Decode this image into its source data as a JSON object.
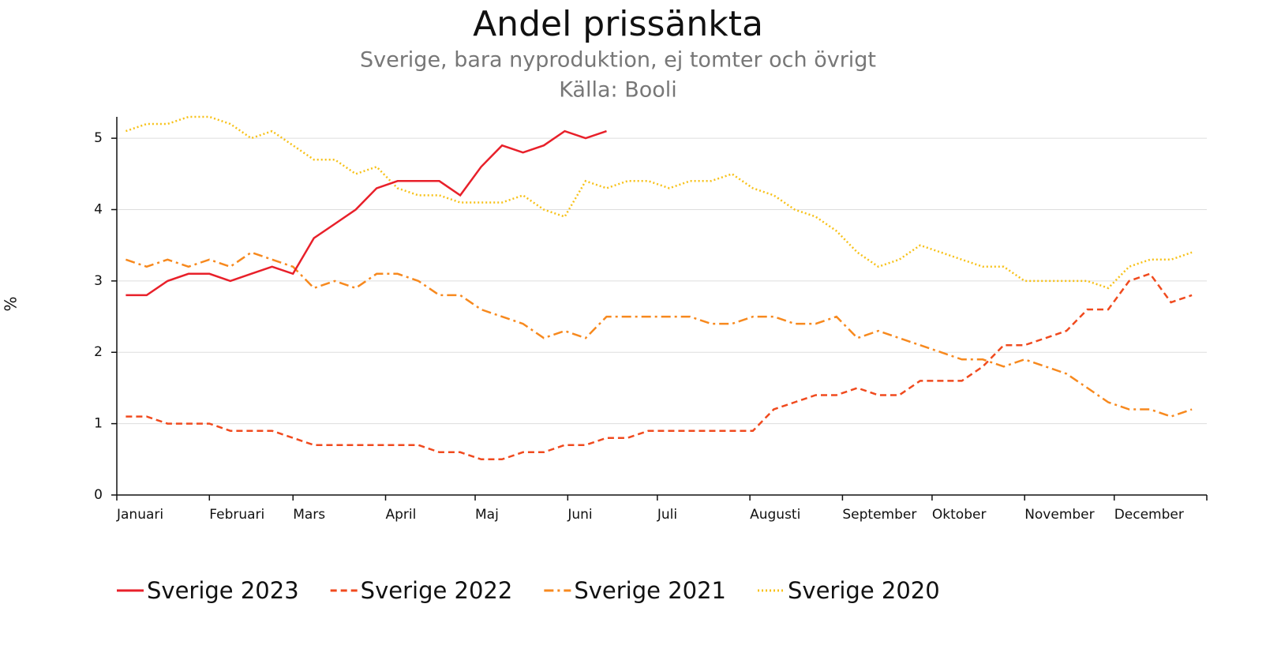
{
  "chart_data": {
    "type": "line",
    "title": "Andel prissänkta",
    "subtitle": [
      "Sverige, bara nyproduktion, ej tomter och övrigt",
      "Källa: Booli"
    ],
    "y_label": "%",
    "x": [
      3,
      10,
      17,
      24,
      31,
      38,
      45,
      52,
      59,
      66,
      73,
      80,
      87,
      94,
      101,
      108,
      115,
      122,
      129,
      136,
      143,
      150,
      157,
      164,
      171,
      178,
      185,
      192,
      199,
      206,
      213,
      220,
      227,
      234,
      241,
      248,
      255,
      262,
      269,
      276,
      283,
      290,
      297,
      304,
      311,
      318,
      325,
      332,
      339,
      346,
      353,
      360
    ],
    "xlim": [
      0,
      365
    ],
    "xticks": [
      {
        "value": 0,
        "label": "Januari"
      },
      {
        "value": 31,
        "label": "Februari"
      },
      {
        "value": 59,
        "label": "Mars"
      },
      {
        "value": 90,
        "label": "April"
      },
      {
        "value": 120,
        "label": "Maj"
      },
      {
        "value": 151,
        "label": "Juni"
      },
      {
        "value": 181,
        "label": "Juli"
      },
      {
        "value": 212,
        "label": "Augusti"
      },
      {
        "value": 243,
        "label": "September"
      },
      {
        "value": 273,
        "label": "Oktober"
      },
      {
        "value": 304,
        "label": "November"
      },
      {
        "value": 334,
        "label": "December"
      },
      {
        "value": 365,
        "label": null
      }
    ],
    "ylim": [
      0,
      5.3
    ],
    "yticks": [
      0,
      1,
      2,
      3,
      4,
      5
    ],
    "grid": true,
    "legend": "bottom",
    "series": [
      {
        "name": "Sverige 2023",
        "color": "#e8202a",
        "dash": "solid",
        "values": [
          2.8,
          2.8,
          3.0,
          3.1,
          3.1,
          3.0,
          3.1,
          3.2,
          3.1,
          3.6,
          3.8,
          4.0,
          4.3,
          4.4,
          4.4,
          4.4,
          4.2,
          4.6,
          4.9,
          4.8,
          4.9,
          5.1,
          5.0,
          5.1,
          null,
          null,
          null,
          null,
          null,
          null,
          null,
          null,
          null,
          null,
          null,
          null,
          null,
          null,
          null,
          null,
          null,
          null,
          null,
          null,
          null,
          null,
          null,
          null,
          null,
          null,
          null,
          null
        ]
      },
      {
        "name": "Sverige 2022",
        "color": "#f04a1e",
        "dash": "dashed",
        "values": [
          1.1,
          1.1,
          1.0,
          1.0,
          1.0,
          0.9,
          0.9,
          0.9,
          0.8,
          0.7,
          0.7,
          0.7,
          0.7,
          0.7,
          0.7,
          0.6,
          0.6,
          0.5,
          0.5,
          0.6,
          0.6,
          0.7,
          0.7,
          0.8,
          0.8,
          0.9,
          0.9,
          0.9,
          0.9,
          0.9,
          0.9,
          1.2,
          1.3,
          1.4,
          1.4,
          1.5,
          1.4,
          1.4,
          1.6,
          1.6,
          1.6,
          1.8,
          2.1,
          2.1,
          2.2,
          2.3,
          2.6,
          2.6,
          3.0,
          3.1,
          2.7,
          2.8
        ]
      },
      {
        "name": "Sverige 2021",
        "color": "#f7891e",
        "dash": "dashdot",
        "values": [
          3.3,
          3.2,
          3.3,
          3.2,
          3.3,
          3.2,
          3.4,
          3.3,
          3.2,
          2.9,
          3.0,
          2.9,
          3.1,
          3.1,
          3.0,
          2.8,
          2.8,
          2.6,
          2.5,
          2.4,
          2.2,
          2.3,
          2.2,
          2.5,
          2.5,
          2.5,
          2.5,
          2.5,
          2.4,
          2.4,
          2.5,
          2.5,
          2.4,
          2.4,
          2.5,
          2.2,
          2.3,
          2.2,
          2.1,
          2.0,
          1.9,
          1.9,
          1.8,
          1.9,
          1.8,
          1.7,
          1.5,
          1.3,
          1.2,
          1.2,
          1.1,
          1.2
        ]
      },
      {
        "name": "Sverige 2020",
        "color": "#f7c118",
        "dash": "dotted",
        "values": [
          5.1,
          5.2,
          5.2,
          5.3,
          5.3,
          5.2,
          5.0,
          5.1,
          4.9,
          4.7,
          4.7,
          4.5,
          4.6,
          4.3,
          4.2,
          4.2,
          4.1,
          4.1,
          4.1,
          4.2,
          4.0,
          3.9,
          4.4,
          4.3,
          4.4,
          4.4,
          4.3,
          4.4,
          4.4,
          4.5,
          4.3,
          4.2,
          4.0,
          3.9,
          3.7,
          3.4,
          3.2,
          3.3,
          3.5,
          3.4,
          3.3,
          3.2,
          3.2,
          3.0,
          3.0,
          3.0,
          3.0,
          2.9,
          3.2,
          3.3,
          3.3,
          3.4
        ]
      }
    ]
  }
}
